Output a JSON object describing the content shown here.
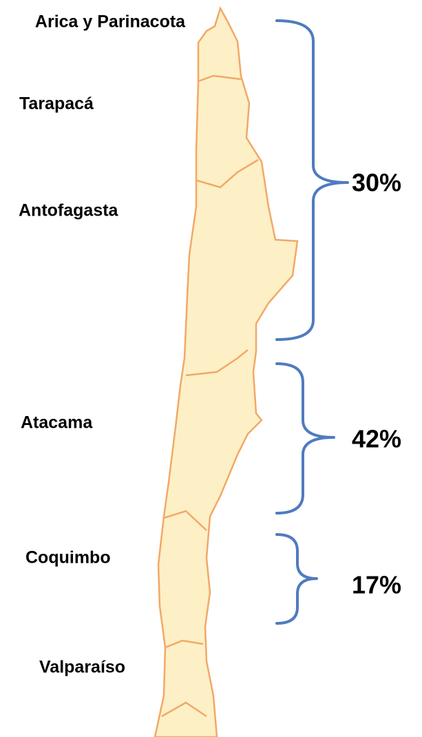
{
  "regions": [
    "Arica y Parinacota",
    "Tarapacá",
    "Antofagasta",
    "Atacama",
    "Coquimbo",
    "Valparaíso"
  ],
  "groups": [
    {
      "label": "30%"
    },
    {
      "label": "42%"
    },
    {
      "label": "17%"
    }
  ]
}
